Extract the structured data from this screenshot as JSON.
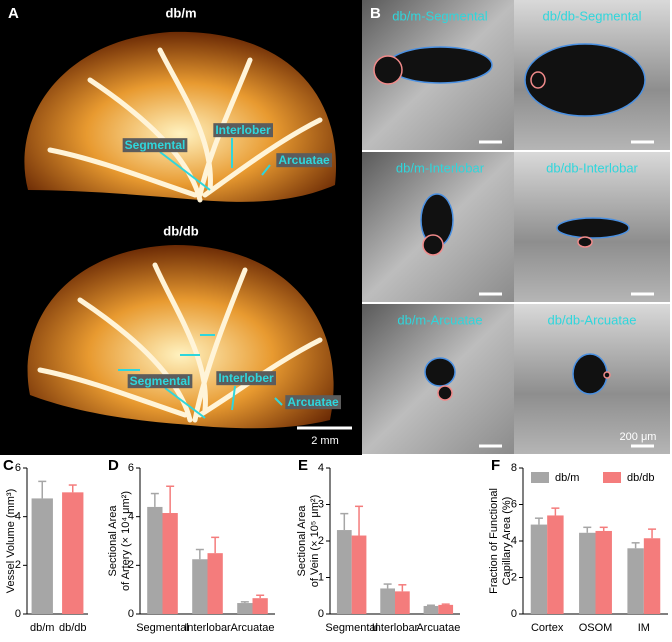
{
  "panel_a": {
    "label": "A",
    "top_title": "db/m",
    "bottom_title": "db/db",
    "top_annotations": [
      "Segmental",
      "Interlober",
      "Arcuatae"
    ],
    "bottom_annotations": [
      "Segmental",
      "Interlober",
      "Arcuatae"
    ],
    "scale": "2 mm"
  },
  "panel_b": {
    "label": "B",
    "images": [
      "db/m-Segmental",
      "db/db-Segmental",
      "db/m-Interlobar",
      "db/db-Interlobar",
      "db/m-Arcuatae",
      "db/db-Arcuatae"
    ],
    "scale": "200 μm"
  },
  "chart_data": [
    {
      "type": "bar",
      "panel": "C",
      "ylabel": [
        "Vessel Volume (mm³)"
      ],
      "categories": [
        "db/m",
        "db/db"
      ],
      "values": [
        4.75,
        5.0
      ],
      "errors": [
        0.7,
        0.3
      ],
      "colors": [
        "#a6a6a6",
        "#f47c7c"
      ],
      "ylim": [
        0,
        6
      ],
      "yticks": [
        0,
        2,
        4,
        6
      ]
    },
    {
      "type": "bar",
      "panel": "D",
      "ylabel": [
        "Sectional Area",
        "of Artery (× 10⁴ μm²)"
      ],
      "categories": [
        "Segmental",
        "Interlobar",
        "Arcuatae"
      ],
      "series": [
        {
          "name": "db/m",
          "color": "#a6a6a6",
          "values": [
            4.4,
            2.25,
            0.45
          ],
          "errors": [
            0.55,
            0.4,
            0.05
          ]
        },
        {
          "name": "db/db",
          "color": "#f47c7c",
          "values": [
            4.15,
            2.5,
            0.65
          ],
          "errors": [
            1.1,
            0.65,
            0.12
          ]
        }
      ],
      "ylim": [
        0,
        6
      ],
      "yticks": [
        0,
        2,
        4,
        6
      ]
    },
    {
      "type": "bar",
      "panel": "E",
      "ylabel": [
        "Sectional Area",
        "of Vein (× 10⁵ μm²)"
      ],
      "categories": [
        "Segmental",
        "Interlobar",
        "Arcuatae"
      ],
      "series": [
        {
          "name": "db/m",
          "color": "#a6a6a6",
          "values": [
            2.3,
            0.7,
            0.22
          ],
          "errors": [
            0.45,
            0.12,
            0.02
          ]
        },
        {
          "name": "db/db",
          "color": "#f47c7c",
          "values": [
            2.15,
            0.62,
            0.25
          ],
          "errors": [
            0.8,
            0.18,
            0.02
          ]
        }
      ],
      "ylim": [
        0,
        4
      ],
      "yticks": [
        0,
        1,
        2,
        3,
        4
      ]
    },
    {
      "type": "bar",
      "panel": "F",
      "ylabel": [
        "Fraction of Functional",
        "Capillary Area (%)"
      ],
      "categories": [
        "Cortex",
        "OSOM",
        "IM"
      ],
      "series": [
        {
          "name": "db/m",
          "color": "#a6a6a6",
          "values": [
            4.9,
            4.45,
            3.6
          ],
          "errors": [
            0.35,
            0.3,
            0.3
          ]
        },
        {
          "name": "db/db",
          "color": "#f47c7c",
          "values": [
            5.4,
            4.55,
            4.15
          ],
          "errors": [
            0.4,
            0.2,
            0.5
          ]
        }
      ],
      "ylim": [
        0,
        8
      ],
      "yticks": [
        0,
        2,
        4,
        6,
        8
      ],
      "legend": "top"
    }
  ]
}
